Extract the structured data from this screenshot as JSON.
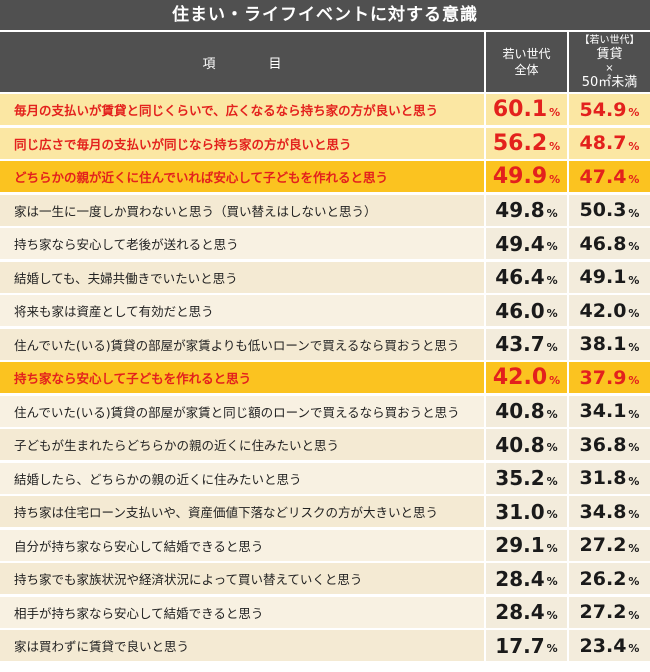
{
  "chart_data": {
    "type": "table",
    "title": "住まい・ライフイベントに対する意識",
    "columns": {
      "item": "項　目",
      "all": [
        "若い世代",
        "全体"
      ],
      "rent": [
        "【若い世代】",
        "賃貸",
        "×",
        "50㎡未満"
      ]
    },
    "unit": "%",
    "rows": [
      {
        "label": "毎月の支払いが賃貸と同じくらいで、広くなるなら持ち家の方が良いと思う",
        "all": "60.1",
        "rent": "54.9",
        "highlight": "light"
      },
      {
        "label": "同じ広さで毎月の支払いが同じなら持ち家の方が良いと思う",
        "all": "56.2",
        "rent": "48.7",
        "highlight": "light"
      },
      {
        "label": "どちらかの親が近くに住んでいれば安心して子どもを作れると思う",
        "all": "49.9",
        "rent": "47.4",
        "highlight": "dark"
      },
      {
        "label": "家は一生に一度しか買わないと思う（買い替えはしないと思う）",
        "all": "49.8",
        "rent": "50.3",
        "highlight": "none"
      },
      {
        "label": "持ち家なら安心して老後が送れると思う",
        "all": "49.4",
        "rent": "46.8",
        "highlight": "none"
      },
      {
        "label": "結婚しても、夫婦共働きでいたいと思う",
        "all": "46.4",
        "rent": "49.1",
        "highlight": "none"
      },
      {
        "label": "将来も家は資産として有効だと思う",
        "all": "46.0",
        "rent": "42.0",
        "highlight": "none"
      },
      {
        "label": "住んでいた(いる)賃貸の部屋が家賃よりも低いローンで買えるなら買おうと思う",
        "all": "43.7",
        "rent": "38.1",
        "highlight": "none"
      },
      {
        "label": "持ち家なら安心して子どもを作れると思う",
        "all": "42.0",
        "rent": "37.9",
        "highlight": "dark"
      },
      {
        "label": "住んでいた(いる)賃貸の部屋が家賃と同じ額のローンで買えるなら買おうと思う",
        "all": "40.8",
        "rent": "34.1",
        "highlight": "none"
      },
      {
        "label": "子どもが生まれたらどちらかの親の近くに住みたいと思う",
        "all": "40.8",
        "rent": "36.8",
        "highlight": "none"
      },
      {
        "label": "結婚したら、どちらかの親の近くに住みたいと思う",
        "all": "35.2",
        "rent": "31.8",
        "highlight": "none"
      },
      {
        "label": "持ち家は住宅ローン支払いや、資産価値下落などリスクの方が大きいと思う",
        "all": "31.0",
        "rent": "34.8",
        "highlight": "none"
      },
      {
        "label": "自分が持ち家なら安心して結婚できると思う",
        "all": "29.1",
        "rent": "27.2",
        "highlight": "none"
      },
      {
        "label": "持ち家でも家族状況や経済状況によって買い替えていくと思う",
        "all": "28.4",
        "rent": "26.2",
        "highlight": "none"
      },
      {
        "label": "相手が持ち家なら安心して結婚できると思う",
        "all": "28.4",
        "rent": "27.2",
        "highlight": "none"
      },
      {
        "label": "家は買わずに賃貸で良いと思う",
        "all": "17.7",
        "rent": "23.4",
        "highlight": "none"
      }
    ]
  }
}
